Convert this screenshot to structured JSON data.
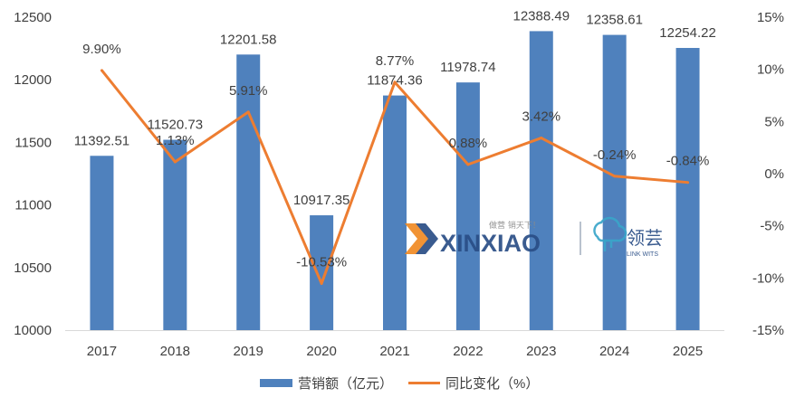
{
  "chart_data": {
    "type": "bar",
    "categories": [
      "2017",
      "2018",
      "2019",
      "2020",
      "2021",
      "2022",
      "2023",
      "2024",
      "2025"
    ],
    "series": [
      {
        "name": "营销额（亿元）",
        "type": "bar",
        "axis": "left",
        "color": "#4f81bd",
        "values": [
          11392.51,
          11520.73,
          12201.58,
          10917.35,
          11874.36,
          11978.74,
          12388.49,
          12358.61,
          12254.22
        ],
        "labels": [
          "11392.51",
          "11520.73",
          "12201.58",
          "10917.35",
          "11874.36",
          "11978.74",
          "12388.49",
          "12358.61",
          "12254.22"
        ]
      },
      {
        "name": "同比变化（%）",
        "type": "line",
        "axis": "right",
        "color": "#ed7d31",
        "values": [
          9.9,
          1.13,
          5.91,
          -10.53,
          8.77,
          0.88,
          3.42,
          -0.24,
          -0.84
        ],
        "labels": [
          "9.90%",
          "1.13%",
          "5.91%",
          "-10.53%",
          "8.77%",
          "0.88%",
          "3.42%",
          "-0.24%",
          "-0.84%"
        ]
      }
    ],
    "y_left": {
      "min": 10000,
      "max": 12500,
      "ticks": [
        "10000",
        "10500",
        "11000",
        "11500",
        "12000",
        "12500"
      ]
    },
    "y_right": {
      "min": -15,
      "max": 15,
      "ticks": [
        "-15%",
        "-10%",
        "-5%",
        "0%",
        "5%",
        "10%",
        "15%"
      ]
    },
    "grid": false,
    "legend_position": "bottom"
  },
  "watermark": {
    "brand": "XINXIAO",
    "slogan": "做营 销天下！",
    "partner": "领芸",
    "partner_en": "LINK WITS"
  }
}
